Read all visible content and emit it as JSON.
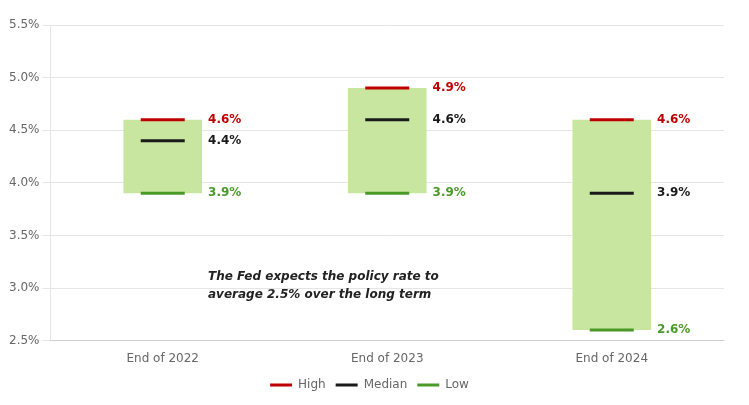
{
  "chart_data": {
    "type": "bar",
    "categories": [
      "End of 2022",
      "End of 2023",
      "End of 2024"
    ],
    "color": "#c8e6a0",
    "series": [
      {
        "name": "High",
        "color": "#c00000",
        "values": [
          4.6,
          4.9,
          4.6
        ],
        "value_labels": [
          "4.6%",
          "4.9%",
          "4.6%"
        ]
      },
      {
        "name": "Median",
        "color": "#1a1a1a",
        "values": [
          4.4,
          4.6,
          3.9
        ],
        "value_labels": [
          "4.4%",
          "4.6%",
          "3.9%"
        ]
      },
      {
        "name": "Low",
        "color": "#4a9a28",
        "values": [
          3.9,
          3.9,
          2.6
        ],
        "value_labels": [
          "3.9%",
          "3.9%",
          "2.6%"
        ]
      }
    ],
    "annotations": [
      "The Fed expects the policy rate to\naverage 2.5% over the long term"
    ],
    "ylim": [
      2.5,
      5.5
    ],
    "yticks": [
      {
        "value": 2.5,
        "label": "2.5%"
      },
      {
        "value": 3.0,
        "label": "3.0%"
      },
      {
        "value": 3.5,
        "label": "3.5%"
      },
      {
        "value": 4.0,
        "label": "4.0%"
      },
      {
        "value": 4.5,
        "label": "4.5%"
      },
      {
        "value": 5.0,
        "label": "5.0%"
      },
      {
        "value": 5.5,
        "label": "5.5%"
      }
    ],
    "grid": true,
    "legend": "bottom",
    "data_labels": true
  }
}
